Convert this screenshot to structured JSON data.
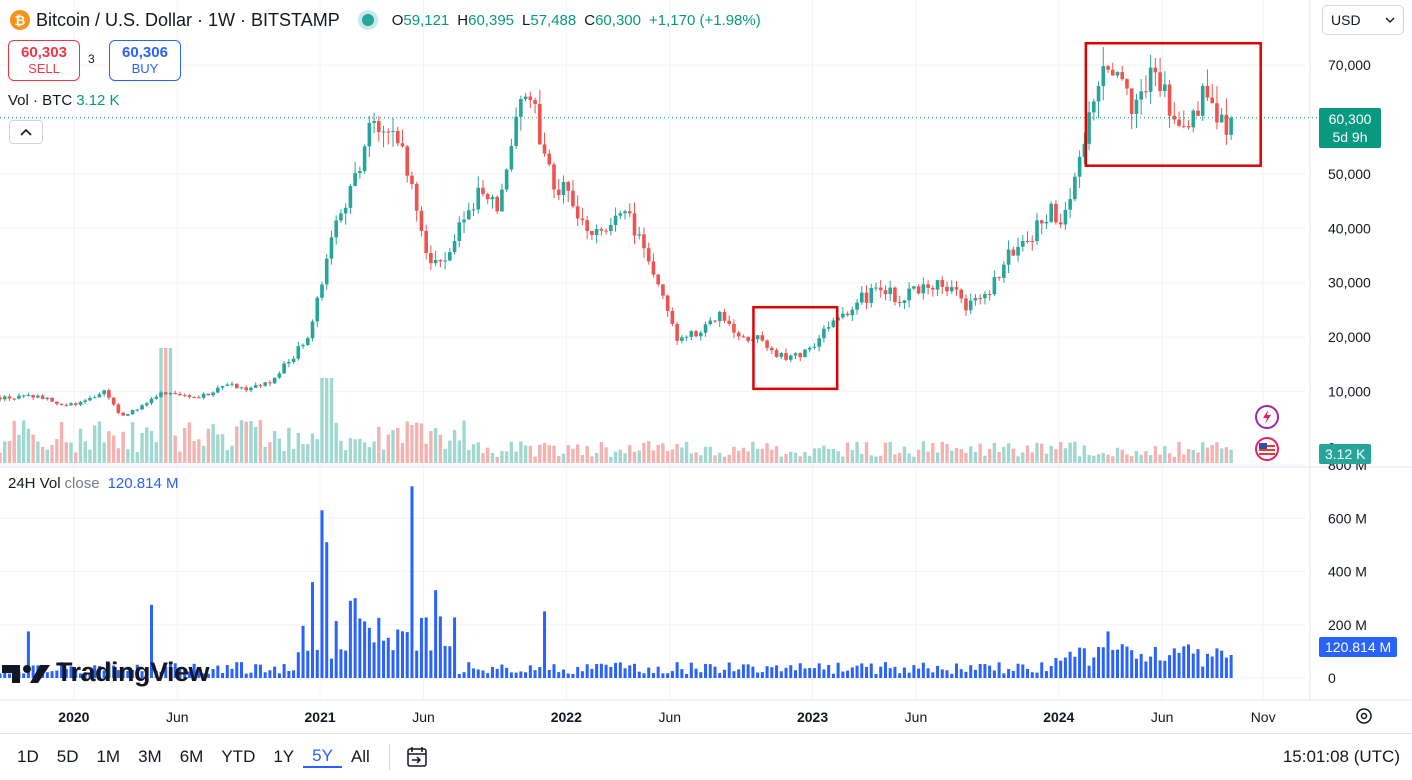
{
  "header": {
    "symbol_title": "Bitcoin / U.S. Dollar · 1W · BITSTAMP",
    "coin_icon": "bitcoin-icon",
    "ohlc": [
      {
        "k": "O",
        "v": "59,121"
      },
      {
        "k": "H",
        "v": "60,395"
      },
      {
        "k": "L",
        "v": "57,488"
      },
      {
        "k": "C",
        "v": "60,300"
      },
      {
        "k": "",
        "v": "+1,170 (+1.98%)"
      }
    ]
  },
  "trade": {
    "sell_price": "60,303",
    "sell_label": "SELL",
    "spread": "3",
    "buy_price": "60,306",
    "buy_label": "BUY"
  },
  "volume_pane": {
    "label": "Vol · BTC",
    "value": "3.12 K"
  },
  "sub_pane": {
    "label": "24H Vol",
    "mode": "close",
    "value": "120.814 M"
  },
  "currency": {
    "selected": "USD"
  },
  "price_tag": {
    "price": "60,300",
    "countdown": "5d 9h"
  },
  "vol_tag": "3.12 K",
  "sub_tag": "120.814 M",
  "logo_text": "TradingView",
  "toolbar": {
    "ranges": [
      "1D",
      "5D",
      "1M",
      "3M",
      "6M",
      "YTD",
      "1Y",
      "5Y",
      "All"
    ],
    "active": "5Y",
    "clock": "15:01:08 (UTC)"
  },
  "colors": {
    "up": "#26a69a",
    "down": "#ef5350",
    "vol_up": "#9fd8d1",
    "vol_down": "#f3b3b0",
    "sub_bar": "#2962ff",
    "highlight": "#e00000"
  },
  "chart_data": [
    {
      "type": "candlestick",
      "title": "Bitcoin / U.S. Dollar · 1W · BITSTAMP",
      "ylim": [
        0,
        75000
      ],
      "y_ticks": [
        0,
        10000,
        20000,
        30000,
        40000,
        50000,
        60000,
        70000
      ],
      "y_tick_labels": [
        "0",
        "10,000",
        "20,000",
        "30,000",
        "40,000",
        "50,000",
        "60,000",
        "70,000"
      ],
      "x_tick_labels": [
        "2020",
        "Jun",
        "2021",
        "Jun",
        "2022",
        "Jun",
        "2023",
        "Jun",
        "2024",
        "Jun",
        "Nov"
      ],
      "x_tick_times": [
        2020.0,
        2020.42,
        2021.0,
        2021.42,
        2022.0,
        2022.42,
        2023.0,
        2023.42,
        2024.0,
        2024.42,
        2024.83
      ],
      "grid": true,
      "last_close": 60300,
      "weekly_close_path": [
        [
          2019.78,
          8900
        ],
        [
          2019.86,
          9200
        ],
        [
          2019.95,
          7300
        ],
        [
          2020.05,
          8200
        ],
        [
          2020.12,
          10100
        ],
        [
          2020.19,
          5500
        ],
        [
          2020.28,
          7300
        ],
        [
          2020.35,
          9500
        ],
        [
          2020.45,
          9300
        ],
        [
          2020.55,
          9200
        ],
        [
          2020.6,
          11500
        ],
        [
          2020.7,
          10700
        ],
        [
          2020.8,
          11500
        ],
        [
          2020.87,
          15500
        ],
        [
          2020.95,
          19500
        ],
        [
          2021.0,
          29000
        ],
        [
          2021.05,
          38000
        ],
        [
          2021.12,
          48000
        ],
        [
          2021.2,
          57000
        ],
        [
          2021.3,
          59000
        ],
        [
          2021.36,
          50000
        ],
        [
          2021.42,
          37000
        ],
        [
          2021.5,
          32000
        ],
        [
          2021.57,
          40000
        ],
        [
          2021.65,
          47000
        ],
        [
          2021.72,
          43000
        ],
        [
          2021.8,
          61000
        ],
        [
          2021.86,
          64000
        ],
        [
          2021.92,
          51000
        ],
        [
          2022.0,
          46000
        ],
        [
          2022.07,
          40000
        ],
        [
          2022.15,
          38000
        ],
        [
          2022.22,
          44000
        ],
        [
          2022.3,
          39000
        ],
        [
          2022.38,
          29000
        ],
        [
          2022.45,
          20000
        ],
        [
          2022.55,
          21000
        ],
        [
          2022.62,
          24000
        ],
        [
          2022.7,
          20000
        ],
        [
          2022.78,
          19500
        ],
        [
          2022.86,
          16500
        ],
        [
          2022.95,
          16500
        ],
        [
          2023.05,
          21000
        ],
        [
          2023.13,
          23500
        ],
        [
          2023.2,
          27000
        ],
        [
          2023.28,
          29000
        ],
        [
          2023.36,
          27000
        ],
        [
          2023.45,
          30000
        ],
        [
          2023.55,
          29500
        ],
        [
          2023.62,
          26000
        ],
        [
          2023.7,
          27000
        ],
        [
          2023.8,
          35000
        ],
        [
          2023.88,
          37500
        ],
        [
          2023.95,
          43000
        ],
        [
          2024.02,
          42500
        ],
        [
          2024.08,
          52000
        ],
        [
          2024.15,
          66000
        ],
        [
          2024.22,
          69000
        ],
        [
          2024.3,
          63500
        ],
        [
          2024.38,
          68000
        ],
        [
          2024.46,
          62000
        ],
        [
          2024.52,
          55000
        ],
        [
          2024.58,
          66000
        ],
        [
          2024.65,
          58000
        ],
        [
          2024.7,
          60300
        ]
      ],
      "highlight_boxes": [
        {
          "t0": 2022.76,
          "t1": 2023.1,
          "p0": 10500,
          "p1": 25500
        },
        {
          "t0": 2024.11,
          "t1": 2024.82,
          "p0": 51500,
          "p1": 74000
        }
      ]
    },
    {
      "type": "bar",
      "title": "Vol · BTC",
      "last_value": "3.12 K"
    },
    {
      "type": "bar",
      "title": "24H Vol close",
      "y_ticks": [
        0,
        200,
        400,
        600,
        800
      ],
      "y_tick_labels": [
        "0",
        "200 M",
        "400 M",
        "600 M",
        "800 M"
      ],
      "unit": "M",
      "last_value": 120.814,
      "spikes": [
        {
          "t": 2019.82,
          "v": 175
        },
        {
          "t": 2020.32,
          "v": 275
        },
        {
          "t": 2020.97,
          "v": 360
        },
        {
          "t": 2021.0,
          "v": 630
        },
        {
          "t": 2021.02,
          "v": 510
        },
        {
          "t": 2021.12,
          "v": 290
        },
        {
          "t": 2021.15,
          "v": 300
        },
        {
          "t": 2021.37,
          "v": 720
        },
        {
          "t": 2021.47,
          "v": 330
        },
        {
          "t": 2021.91,
          "v": 250
        },
        {
          "t": 2024.2,
          "v": 175
        }
      ]
    }
  ]
}
